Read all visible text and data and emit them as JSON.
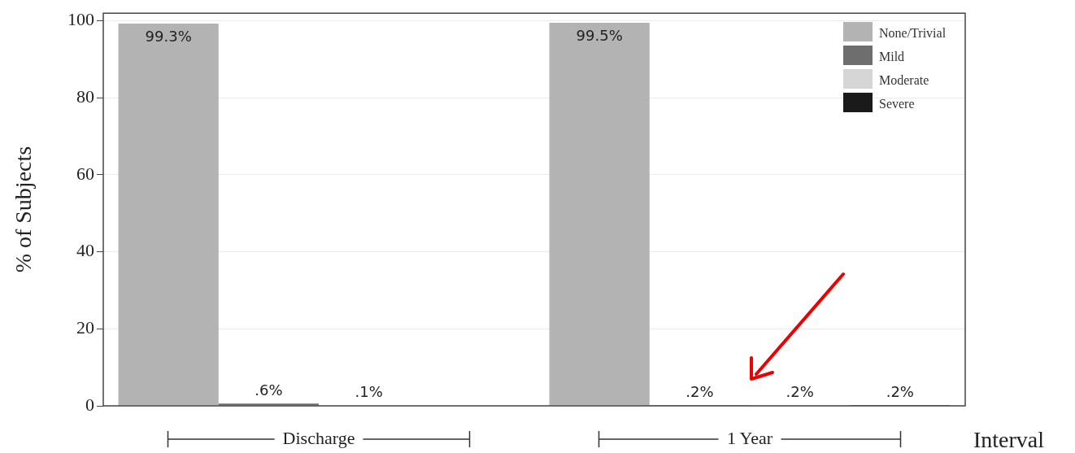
{
  "chart_data": {
    "type": "bar",
    "categories": [
      "Discharge",
      "1 Year"
    ],
    "series": [
      {
        "name": "None/Trivial",
        "color": "#b3b3b3",
        "values": [
          99.3,
          99.5
        ],
        "value_labels": [
          "99.3%",
          "99.5%"
        ]
      },
      {
        "name": "Mild",
        "color": "#6e6e6e",
        "values": [
          0.6,
          0.2
        ],
        "value_labels": [
          ".6%",
          ".2%"
        ]
      },
      {
        "name": "Moderate",
        "color": "#d6d6d6",
        "values": [
          0.1,
          0.2
        ],
        "value_labels": [
          ".1%",
          ".2%"
        ]
      },
      {
        "name": "Severe",
        "color": "#1a1a1a",
        "values": [
          0,
          0.2
        ],
        "value_labels": [
          null,
          ".2%"
        ]
      }
    ],
    "xlabel": "Interval",
    "ylabel": "% of Subjects",
    "ylim": [
      0,
      102
    ],
    "yticks": [
      0,
      20,
      40,
      60,
      80,
      100
    ],
    "grid": "y",
    "legend": "top right"
  }
}
